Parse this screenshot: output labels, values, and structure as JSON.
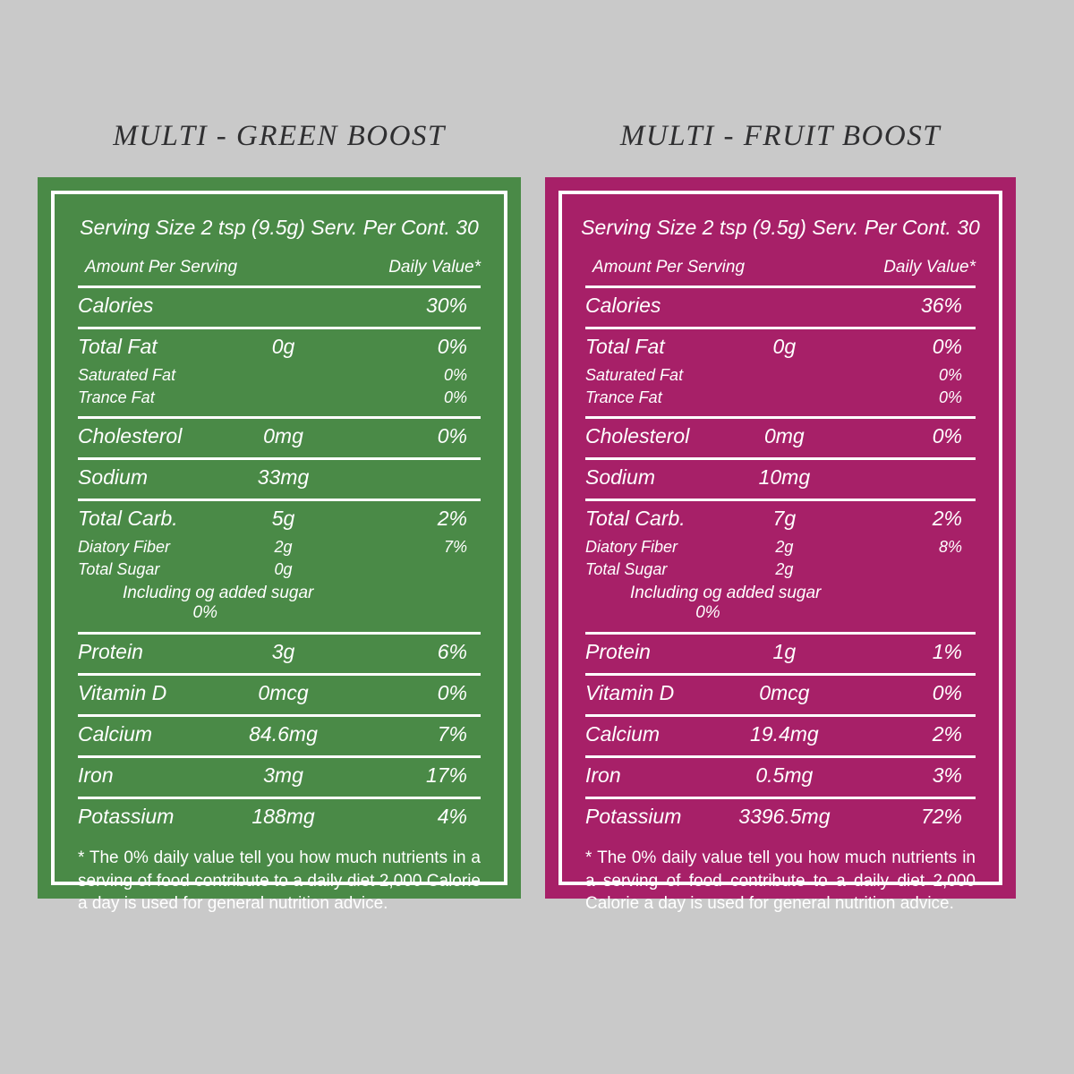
{
  "page": {
    "background": "#c9c9c9",
    "title_color": "#2f2f31",
    "text_color": "#ffffff"
  },
  "labels": [
    {
      "title": "MULTI - GREEN BOOST",
      "panel_color": "#4a8a47",
      "border_color": "#ffffff",
      "serving_line": "Serving Size 2 tsp (9.5g) Serv. Per Cont. 30",
      "header": {
        "amount": "Amount Per Serving",
        "daily_value": "Daily Value*"
      },
      "rows": [
        {
          "label": "Calories",
          "amount": "",
          "dv": "30%",
          "type": "main",
          "divider": true
        },
        {
          "label": "Total Fat",
          "amount": "0g",
          "dv": "0%",
          "type": "main",
          "divider": false
        },
        {
          "label": "Saturated Fat",
          "amount": "",
          "dv": "0%",
          "type": "sub",
          "divider": false
        },
        {
          "label": "Trance Fat",
          "amount": "",
          "dv": "0%",
          "type": "sub",
          "divider": true
        },
        {
          "label": "Cholesterol",
          "amount": "0mg",
          "dv": "0%",
          "type": "main",
          "divider": true
        },
        {
          "label": "Sodium",
          "amount": "33mg",
          "dv": "",
          "type": "main",
          "divider": true
        },
        {
          "label": "Total Carb.",
          "amount": "5g",
          "dv": "2%",
          "type": "main",
          "divider": false
        },
        {
          "label": "Diatory Fiber",
          "amount": "2g",
          "dv": "7%",
          "type": "sub",
          "divider": false
        },
        {
          "label": "Total Sugar",
          "amount": "0g",
          "dv": "",
          "type": "sub",
          "divider": false
        },
        {
          "label": "Including og added sugar",
          "amount": "",
          "dv": "0%",
          "type": "indent",
          "divider": true
        },
        {
          "label": "Protein",
          "amount": "3g",
          "dv": "6%",
          "type": "main",
          "divider": true
        },
        {
          "label": "Vitamin D",
          "amount": "0mcg",
          "dv": "0%",
          "type": "main",
          "divider": true
        },
        {
          "label": "Calcium",
          "amount": "84.6mg",
          "dv": "7%",
          "type": "main",
          "divider": true
        },
        {
          "label": "Iron",
          "amount": "3mg",
          "dv": "17%",
          "type": "main",
          "divider": true
        },
        {
          "label": "Potassium",
          "amount": "188mg",
          "dv": "4%",
          "type": "main",
          "divider": false
        }
      ],
      "footnote": "* The 0% daily value tell you how much nutrients in a serving of food contribute to a daily diet 2,000 Calorie a day is used  for general nutrition advice."
    },
    {
      "title": "MULTI - FRUIT BOOST",
      "panel_color": "#a72068",
      "border_color": "#ffffff",
      "serving_line": "Serving Size 2 tsp (9.5g) Serv. Per Cont. 30",
      "header": {
        "amount": "Amount Per Serving",
        "daily_value": "Daily Value*"
      },
      "rows": [
        {
          "label": "Calories",
          "amount": "",
          "dv": "36%",
          "type": "main",
          "divider": true
        },
        {
          "label": "Total Fat",
          "amount": "0g",
          "dv": "0%",
          "type": "main",
          "divider": false
        },
        {
          "label": "Saturated Fat",
          "amount": "",
          "dv": "0%",
          "type": "sub",
          "divider": false
        },
        {
          "label": "Trance Fat",
          "amount": "",
          "dv": "0%",
          "type": "sub",
          "divider": true
        },
        {
          "label": "Cholesterol",
          "amount": "0mg",
          "dv": "0%",
          "type": "main",
          "divider": true
        },
        {
          "label": "Sodium",
          "amount": "10mg",
          "dv": "",
          "type": "main",
          "divider": true
        },
        {
          "label": "Total Carb.",
          "amount": "7g",
          "dv": "2%",
          "type": "main",
          "divider": false
        },
        {
          "label": "Diatory Fiber",
          "amount": "2g",
          "dv": "8%",
          "type": "sub",
          "divider": false
        },
        {
          "label": "Total Sugar",
          "amount": "2g",
          "dv": "",
          "type": "sub",
          "divider": false
        },
        {
          "label": "Including og added sugar",
          "amount": "",
          "dv": "0%",
          "type": "indent",
          "divider": true
        },
        {
          "label": "Protein",
          "amount": "1g",
          "dv": "1%",
          "type": "main",
          "divider": true
        },
        {
          "label": "Vitamin D",
          "amount": "0mcg",
          "dv": "0%",
          "type": "main",
          "divider": true
        },
        {
          "label": "Calcium",
          "amount": "19.4mg",
          "dv": "2%",
          "type": "main",
          "divider": true
        },
        {
          "label": "Iron",
          "amount": "0.5mg",
          "dv": "3%",
          "type": "main",
          "divider": true
        },
        {
          "label": "Potassium",
          "amount": "3396.5mg",
          "dv": "72%",
          "type": "main",
          "divider": false
        }
      ],
      "footnote": "* The 0% daily value tell you how much nutrients in a serving of food contribute to a daily diet 2,000 Calorie a day is used  for general nutrition advice."
    }
  ]
}
